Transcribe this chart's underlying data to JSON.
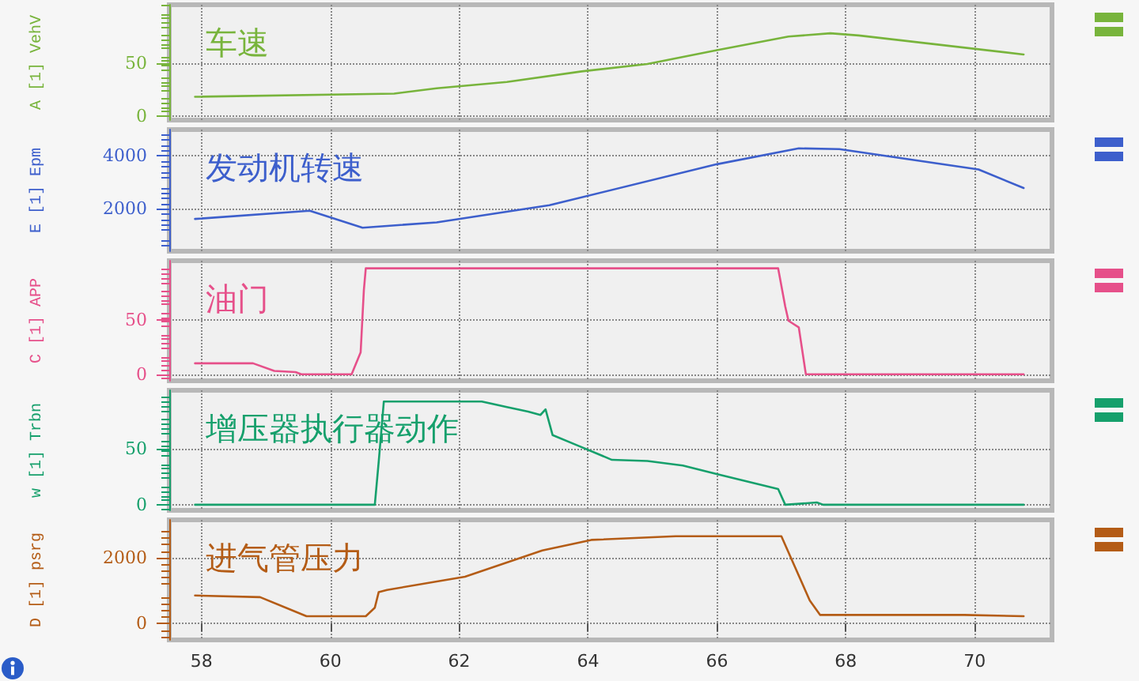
{
  "chart_data": [
    {
      "type": "line",
      "title": "车速",
      "ylabel": "A [1] VehV",
      "xlim": [
        57.5,
        71.2
      ],
      "xticks": [
        58,
        60,
        62,
        64,
        66,
        68,
        70
      ],
      "ylim": [
        -4,
        105
      ],
      "yticks": [
        0,
        50
      ],
      "grid": true,
      "tick_labels": "y",
      "marker": "none",
      "series": [
        {
          "color": "#78b43c",
          "x": [
            57.9,
            60.99,
            61.65,
            62.74,
            63.9,
            64.92,
            66.0,
            67.11,
            67.76,
            68.2,
            70.76
          ],
          "values": [
            18,
            21,
            26,
            32,
            42,
            49,
            62,
            75,
            78,
            76,
            58
          ]
        }
      ]
    },
    {
      "type": "line",
      "title": "发动机转速",
      "ylabel": "E [1] Epm",
      "xlim": [
        57.5,
        71.2
      ],
      "xticks": [
        58,
        60,
        62,
        64,
        66,
        68,
        70
      ],
      "ylim": [
        400,
        5000
      ],
      "yticks": [
        2000,
        4000
      ],
      "grid": true,
      "tick_labels": "y",
      "marker": "none",
      "series": [
        {
          "color": "#3d5fcc",
          "x": [
            57.9,
            59.68,
            60.5,
            61.65,
            63.4,
            66.0,
            67.27,
            67.9,
            70.06,
            70.76
          ],
          "values": [
            1620,
            1930,
            1290,
            1490,
            2140,
            3690,
            4290,
            4260,
            3490,
            2790
          ]
        }
      ]
    },
    {
      "type": "line",
      "title": "油门",
      "ylabel": "C [1] APP",
      "xlim": [
        57.5,
        71.2
      ],
      "xticks": [
        58,
        60,
        62,
        64,
        66,
        68,
        70
      ],
      "ylim": [
        -6,
        104
      ],
      "yticks": [
        0,
        50
      ],
      "grid": true,
      "tick_labels": "y",
      "marker": "none",
      "series": [
        {
          "color": "#e6508a",
          "x": [
            57.9,
            58.8,
            59.13,
            59.46,
            59.55,
            60.33,
            60.47,
            60.52,
            60.55,
            66.95,
            67.06,
            67.11,
            67.27,
            67.38,
            70.76
          ],
          "values": [
            10,
            10,
            3,
            2,
            0,
            0,
            20,
            77,
            97,
            97,
            62,
            49,
            43,
            0,
            0
          ]
        }
      ]
    },
    {
      "type": "line",
      "title": "增压器执行器动作",
      "ylabel": "w [1] Trbn",
      "xlim": [
        57.5,
        71.2
      ],
      "xticks": [
        58,
        60,
        62,
        64,
        66,
        68,
        70
      ],
      "ylim": [
        -5,
        102
      ],
      "yticks": [
        0,
        50
      ],
      "grid": true,
      "tick_labels": "y",
      "marker": "none",
      "series": [
        {
          "color": "#16a06c",
          "x": [
            57.9,
            60.69,
            60.75,
            60.83,
            62.35,
            62.74,
            63.07,
            63.26,
            63.34,
            63.45,
            63.83,
            64.37,
            64.92,
            65.47,
            66.02,
            66.95,
            67.06,
            67.55,
            67.65,
            70.76
          ],
          "values": [
            0,
            0,
            38,
            92,
            92,
            87,
            83,
            80,
            85,
            62,
            53,
            40,
            39,
            35,
            27,
            14,
            0,
            2,
            0,
            0
          ]
        }
      ]
    },
    {
      "type": "line",
      "title": "进气管压力",
      "ylabel": "D [1] psrg",
      "xlim": [
        57.5,
        71.2
      ],
      "xticks": [
        58,
        60,
        62,
        64,
        66,
        68,
        70
      ],
      "ylim": [
        -500,
        3150
      ],
      "yticks": [
        0,
        2000
      ],
      "grid": true,
      "marker": "none",
      "series": [
        {
          "color": "#b45c16",
          "x": [
            57.9,
            58.91,
            59.63,
            60.55,
            60.69,
            60.75,
            60.88,
            62.09,
            63.29,
            64.05,
            65.36,
            67.0,
            67.44,
            67.6,
            69.84,
            70.76
          ],
          "values": [
            850,
            800,
            220,
            220,
            480,
            950,
            1020,
            1420,
            2220,
            2540,
            2650,
            2650,
            700,
            260,
            260,
            220
          ]
        }
      ]
    }
  ]
}
